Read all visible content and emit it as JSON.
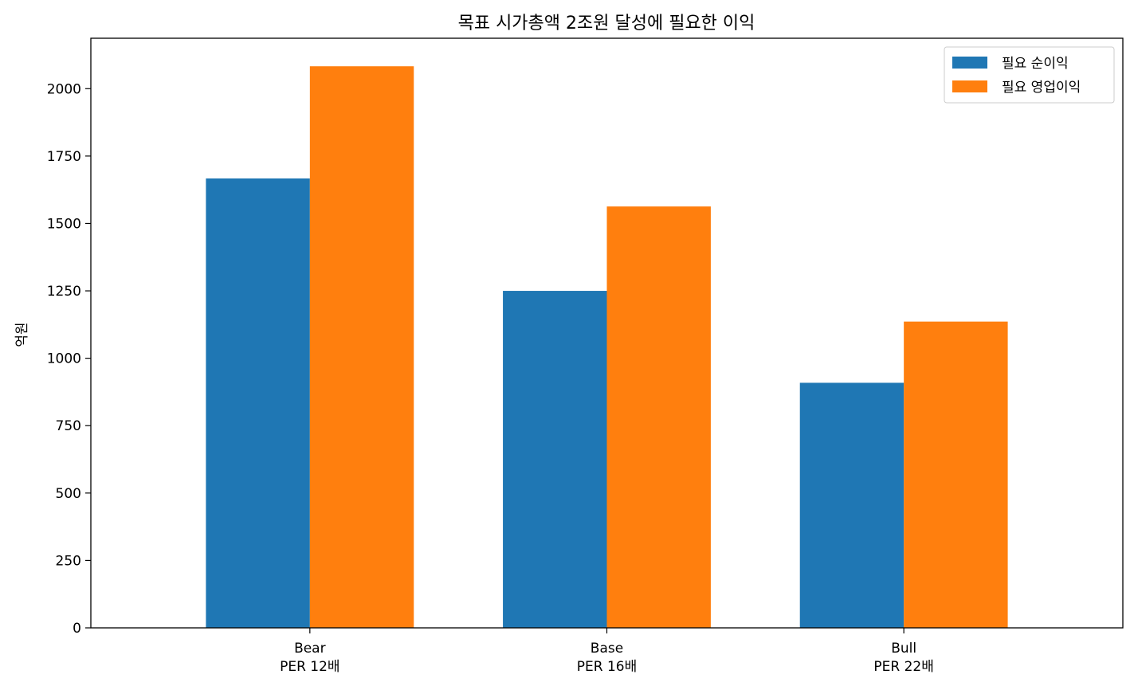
{
  "chart_data": {
    "type": "bar",
    "title": "목표 시가총액 2조원 달성에 필요한 이익",
    "xlabel": "",
    "ylabel": "억원",
    "categories": [
      [
        "Bear",
        "PER 12배"
      ],
      [
        "Base",
        "PER 16배"
      ],
      [
        "Bull",
        "PER 22배"
      ]
    ],
    "series": [
      {
        "name": "필요 순이익",
        "color": "#1f77b4",
        "values": [
          1667,
          1250,
          909
        ]
      },
      {
        "name": "필요 영업이익",
        "color": "#ff7f0e",
        "values": [
          2083,
          1563,
          1136
        ]
      }
    ],
    "ylim": [
      0,
      2187
    ],
    "yticks": [
      0,
      250,
      500,
      750,
      1000,
      1250,
      1500,
      1750,
      2000
    ],
    "grid": false,
    "legend_position": "top-right"
  }
}
